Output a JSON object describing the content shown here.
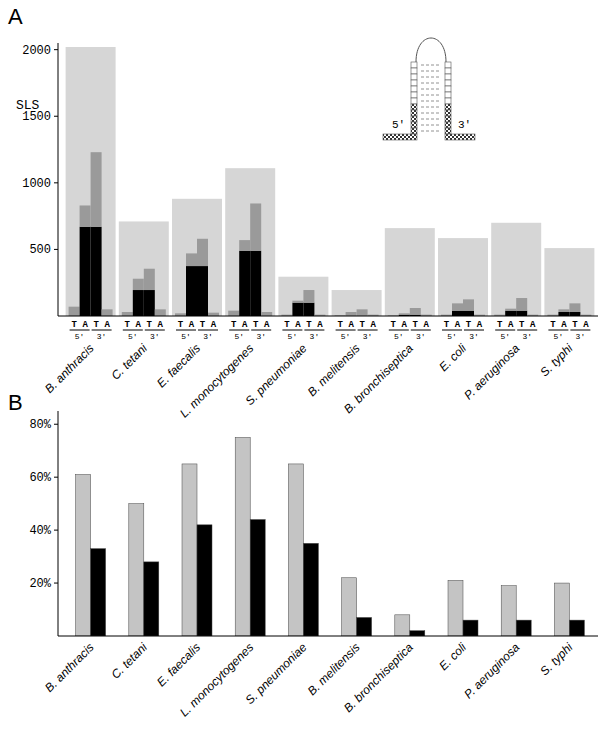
{
  "chart_data": [
    {
      "type": "bar",
      "title": "A",
      "y_label": "SLS",
      "stacked": true,
      "categories": [
        "B. anthracis",
        "C. tetani",
        "E. faecalis",
        "L. monocytogenes",
        "S. pneumoniae",
        "B. melitensis",
        "B. bronchiseptica",
        "E. coli",
        "P. aeruginosa",
        "S. typhi"
      ],
      "ylim": [
        0,
        2050
      ],
      "yticks": [
        500,
        1000,
        1500,
        2000
      ],
      "total": {
        "color": "#d6d6d6",
        "values": [
          2020,
          710,
          880,
          1110,
          295,
          195,
          660,
          585,
          700,
          510
        ]
      },
      "ends": [
        {
          "label": "5'",
          "columns": [
            {
              "label": "T",
              "series": [
                {
                  "color": "#000000",
                  "values": [
                    0,
                    0,
                    0,
                    0,
                    0,
                    0,
                    0,
                    0,
                    0,
                    0
                  ]
                },
                {
                  "color": "#9a9a9a",
                  "values": [
                    70,
                    30,
                    20,
                    40,
                    10,
                    5,
                    5,
                    10,
                    10,
                    10
                  ]
                }
              ]
            },
            {
              "label": "A",
              "series": [
                {
                  "color": "#000000",
                  "values": [
                    670,
                    195,
                    375,
                    490,
                    100,
                    0,
                    10,
                    40,
                    40,
                    30
                  ]
                },
                {
                  "color": "#9a9a9a",
                  "values": [
                    160,
                    85,
                    95,
                    80,
                    15,
                    30,
                    10,
                    55,
                    15,
                    20
                  ]
                }
              ]
            }
          ]
        },
        {
          "label": "3'",
          "columns": [
            {
              "label": "T",
              "series": [
                {
                  "color": "#000000",
                  "values": [
                    670,
                    195,
                    375,
                    490,
                    100,
                    0,
                    10,
                    40,
                    40,
                    30
                  ]
                },
                {
                  "color": "#9a9a9a",
                  "values": [
                    560,
                    160,
                    205,
                    355,
                    95,
                    50,
                    50,
                    85,
                    95,
                    65
                  ]
                }
              ]
            },
            {
              "label": "A",
              "series": [
                {
                  "color": "#000000",
                  "values": [
                    0,
                    0,
                    0,
                    0,
                    0,
                    0,
                    0,
                    0,
                    0,
                    0
                  ]
                },
                {
                  "color": "#9a9a9a",
                  "values": [
                    50,
                    50,
                    25,
                    30,
                    10,
                    10,
                    10,
                    10,
                    10,
                    10
                  ]
                }
              ]
            }
          ]
        }
      ]
    },
    {
      "type": "bar",
      "title": "B",
      "categories": [
        "B. anthracis",
        "C. tetani",
        "E. faecalis",
        "L. monocytogenes",
        "S. pneumoniae",
        "B. melitensis",
        "B. bronchiseptica",
        "E. coli",
        "P. aeruginosa",
        "S. typhi"
      ],
      "ylim": [
        0,
        85
      ],
      "yticks": [
        {
          "value": 20,
          "label": "20%"
        },
        {
          "value": 40,
          "label": "40%"
        },
        {
          "value": 60,
          "label": "60%"
        },
        {
          "value": 80,
          "label": "80%"
        }
      ],
      "series": [
        {
          "color": "#c4c4c4",
          "values": [
            61,
            50,
            65,
            75,
            65,
            22,
            8,
            21,
            19,
            20
          ]
        },
        {
          "color": "#000000",
          "values": [
            33,
            28,
            42,
            44,
            35,
            7,
            2,
            6,
            6,
            6
          ]
        }
      ]
    }
  ]
}
